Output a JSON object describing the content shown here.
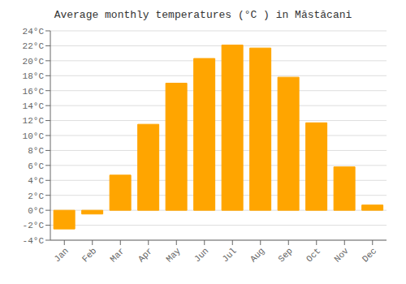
{
  "chart_data": {
    "type": "bar",
    "title": "Average monthly temperatures (°C ) in Măstăcani",
    "categories": [
      "Jan",
      "Feb",
      "Mar",
      "Apr",
      "May",
      "Jun",
      "Jul",
      "Aug",
      "Sep",
      "Oct",
      "Nov",
      "Dec"
    ],
    "values": [
      -2.5,
      -0.5,
      4.7,
      11.5,
      17.0,
      20.3,
      22.1,
      21.7,
      17.8,
      11.7,
      5.8,
      0.7
    ],
    "color": "#FFA500",
    "ylim": [
      -4,
      24
    ],
    "yticks": [
      {
        "value": -4,
        "label": "-4°C"
      },
      {
        "value": -2,
        "label": "-2°C"
      },
      {
        "value": 0,
        "label": "0°C"
      },
      {
        "value": 2,
        "label": "2°C"
      },
      {
        "value": 4,
        "label": "4°C"
      },
      {
        "value": 6,
        "label": "6°C"
      },
      {
        "value": 8,
        "label": "8°C"
      },
      {
        "value": 10,
        "label": "10°C"
      },
      {
        "value": 12,
        "label": "12°C"
      },
      {
        "value": 14,
        "label": "14°C"
      },
      {
        "value": 16,
        "label": "16°C"
      },
      {
        "value": 18,
        "label": "18°C"
      },
      {
        "value": 20,
        "label": "20°C"
      },
      {
        "value": 22,
        "label": "22°C"
      },
      {
        "value": 24,
        "label": "24°C"
      }
    ],
    "grid": true
  }
}
